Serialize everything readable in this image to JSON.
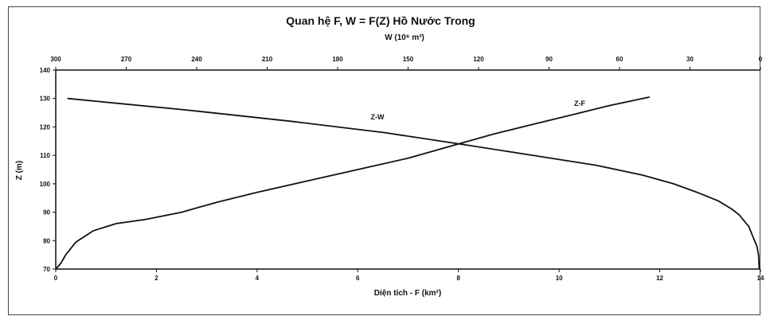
{
  "chart_data": {
    "type": "line",
    "title": "Quan hệ F, W = F(Z) Hồ Nước Trong",
    "xlabel_bottom": "Diện tích - F (km²)",
    "xlabel_top": "W (10⁶ m³)",
    "ylabel": "Z (m)",
    "x_bottom": {
      "lim": [
        0,
        14
      ],
      "ticks": [
        0,
        2,
        4,
        6,
        8,
        10,
        12,
        14
      ]
    },
    "x_top": {
      "lim": [
        300,
        0
      ],
      "ticks": [
        300,
        270,
        240,
        210,
        180,
        150,
        120,
        90,
        60,
        30,
        0
      ]
    },
    "y": {
      "lim": [
        70,
        140
      ],
      "ticks": [
        70,
        80,
        90,
        100,
        110,
        120,
        130,
        140
      ]
    },
    "grid": false,
    "series": [
      {
        "name": "Z-F",
        "axis": "bottom",
        "points": [
          [
            0.0,
            70
          ],
          [
            0.1,
            72
          ],
          [
            0.2,
            75
          ],
          [
            0.4,
            79.5
          ],
          [
            0.75,
            83.5
          ],
          [
            1.2,
            86
          ],
          [
            1.8,
            87.5
          ],
          [
            2.5,
            90
          ],
          [
            3.2,
            93.5
          ],
          [
            4.0,
            97
          ],
          [
            5.0,
            101
          ],
          [
            6.0,
            105
          ],
          [
            7.0,
            109
          ],
          [
            7.9,
            113.5
          ],
          [
            8.7,
            117.5
          ],
          [
            9.5,
            121
          ],
          [
            10.2,
            124
          ],
          [
            11.0,
            127.5
          ],
          [
            11.8,
            130.5
          ]
        ]
      },
      {
        "name": "Z-W",
        "axis": "top",
        "points": [
          [
            0.5,
            70
          ],
          [
            0.8,
            75
          ],
          [
            1.5,
            78
          ],
          [
            3,
            81
          ],
          [
            5,
            85
          ],
          [
            9,
            89
          ],
          [
            12,
            91
          ],
          [
            18,
            94
          ],
          [
            27,
            97
          ],
          [
            37,
            100
          ],
          [
            50,
            103
          ],
          [
            70,
            106.5
          ],
          [
            97,
            110
          ],
          [
            128,
            114
          ],
          [
            160,
            118
          ],
          [
            200,
            122
          ],
          [
            245,
            126
          ],
          [
            295,
            130
          ]
        ]
      }
    ]
  }
}
